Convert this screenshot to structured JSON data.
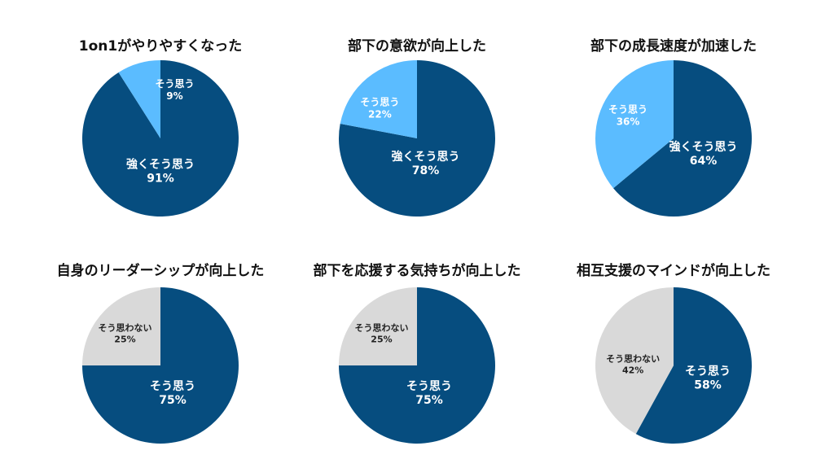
{
  "colors": {
    "dark_blue": "#064d7f",
    "light_blue": "#5bbcff",
    "gray": "#d9d9d9",
    "white": "#ffffff",
    "dark_text": "#222222"
  },
  "chart_data": [
    {
      "type": "pie",
      "title": "1on1がやりやすくなった",
      "slices": [
        {
          "name": "強くそう思う",
          "value": 91,
          "label": "91%",
          "color": "dark_blue"
        },
        {
          "name": "そう思う",
          "value": 9,
          "label": "9%",
          "color": "light_blue"
        }
      ]
    },
    {
      "type": "pie",
      "title": "部下の意欲が向上した",
      "slices": [
        {
          "name": "強くそう思う",
          "value": 78,
          "label": "78%",
          "color": "dark_blue"
        },
        {
          "name": "そう思う",
          "value": 22,
          "label": "22%",
          "color": "light_blue"
        }
      ]
    },
    {
      "type": "pie",
      "title": "部下の成長速度が加速した",
      "slices": [
        {
          "name": "強くそう思う",
          "value": 64,
          "label": "64%",
          "color": "dark_blue"
        },
        {
          "name": "そう思う",
          "value": 36,
          "label": "36%",
          "color": "light_blue"
        }
      ]
    },
    {
      "type": "pie",
      "title": "自身のリーダーシップが向上した",
      "slices": [
        {
          "name": "そう思う",
          "value": 75,
          "label": "75%",
          "color": "dark_blue"
        },
        {
          "name": "そう思わない",
          "value": 25,
          "label": "25%",
          "color": "gray"
        }
      ]
    },
    {
      "type": "pie",
      "title": "部下を応援する気持ちが向上した",
      "slices": [
        {
          "name": "そう思う",
          "value": 75,
          "label": "75%",
          "color": "dark_blue"
        },
        {
          "name": "そう思わない",
          "value": 25,
          "label": "25%",
          "color": "gray"
        }
      ]
    },
    {
      "type": "pie",
      "title": "相互支援のマインドが向上した",
      "slices": [
        {
          "name": "そう思う",
          "value": 58,
          "label": "58%",
          "color": "dark_blue"
        },
        {
          "name": "そう思わない",
          "value": 42,
          "label": "42%",
          "color": "gray"
        }
      ]
    }
  ]
}
